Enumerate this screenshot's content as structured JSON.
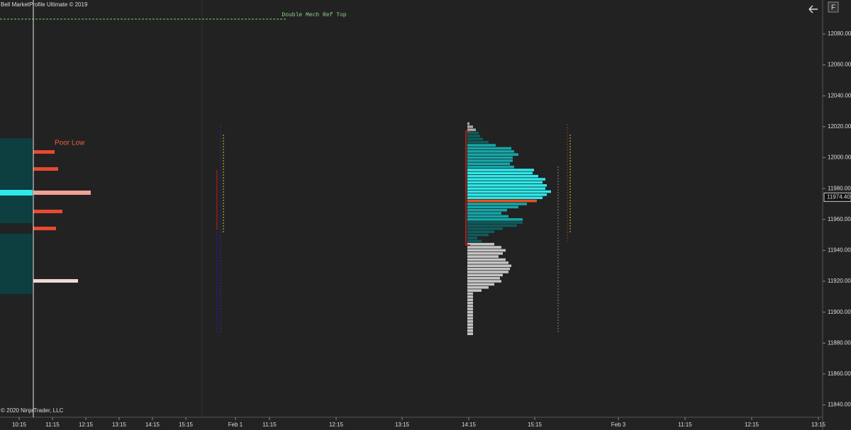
{
  "header": {
    "title": "Bell MarketProfile Ultimate © 2019",
    "copyright": "© 2020 NinjaTrader, LLC",
    "button": "F"
  },
  "chart_data": {
    "type": "profile",
    "annotations": {
      "poor_low": "Poor Low",
      "ref_top": "Double Mech Ref Top"
    },
    "current_price": {
      "value": 11974.4,
      "label": "11974.40"
    },
    "ylim": [
      11832,
      12102
    ],
    "yticks": [
      {
        "value": 11840,
        "label": "11840.00"
      },
      {
        "value": 11860,
        "label": "11860.00"
      },
      {
        "value": 11880,
        "label": "11880.00"
      },
      {
        "value": 11900,
        "label": "11900.00"
      },
      {
        "value": 11920,
        "label": "11920.00"
      },
      {
        "value": 11940,
        "label": "11940.00"
      },
      {
        "value": 11960,
        "label": "11960.00"
      },
      {
        "value": 11980,
        "label": "11980.00"
      },
      {
        "value": 12000,
        "label": "12000.00"
      },
      {
        "value": 12020,
        "label": "12020.00"
      },
      {
        "value": 12040,
        "label": "12040.00"
      },
      {
        "value": 12060,
        "label": "12060.00"
      },
      {
        "value": 12080,
        "label": "12080.00"
      }
    ],
    "time_labels": [
      "10:15",
      "11:15",
      "12:15",
      "13:15",
      "14:15",
      "15:15",
      "Feb 1",
      "11:15",
      "12:15",
      "13:15",
      "14:15",
      "15:15",
      "Feb 3",
      "11:15",
      "12:15",
      "13:15"
    ],
    "profile": {
      "top_price": 12022,
      "step": 2,
      "xlim": [
        0,
        120
      ],
      "values": [
        3,
        8,
        12,
        16,
        18,
        22,
        30,
        40,
        62,
        66,
        72,
        64,
        64,
        60,
        66,
        94,
        92,
        100,
        110,
        106,
        112,
        110,
        118,
        112,
        106,
        98,
        84,
        72,
        56,
        48,
        58,
        78,
        78,
        70,
        50,
        38,
        30,
        14,
        20,
        38,
        48,
        54,
        50,
        44,
        54,
        58,
        62,
        60,
        58,
        50,
        46,
        48,
        38,
        30,
        20,
        8,
        8,
        8,
        8,
        8,
        8,
        8,
        8,
        8,
        8,
        8,
        8,
        8,
        8
      ],
      "bands": [
        {
          "high": 12022,
          "low": 12018,
          "color": "#a8a8a8"
        },
        {
          "high": 12016,
          "low": 12010,
          "color": "#0f5c5c"
        },
        {
          "high": 12008,
          "low": 11994,
          "color": "#16a6a8"
        },
        {
          "high": 11992,
          "low": 11974,
          "color": "#2ee8ea"
        },
        {
          "high": 11972,
          "low": 11972,
          "color": "#e8541e"
        },
        {
          "high": 11970,
          "low": 11960,
          "color": "#16a6a8"
        },
        {
          "high": 11958,
          "low": 11946,
          "color": "#0f5c5c"
        },
        {
          "high": 11944,
          "low": 11886,
          "color": "#c4c4c4"
        }
      ],
      "value_area": {
        "high": 12017,
        "low": 11943.5,
        "color": "#d0201c"
      }
    }
  }
}
